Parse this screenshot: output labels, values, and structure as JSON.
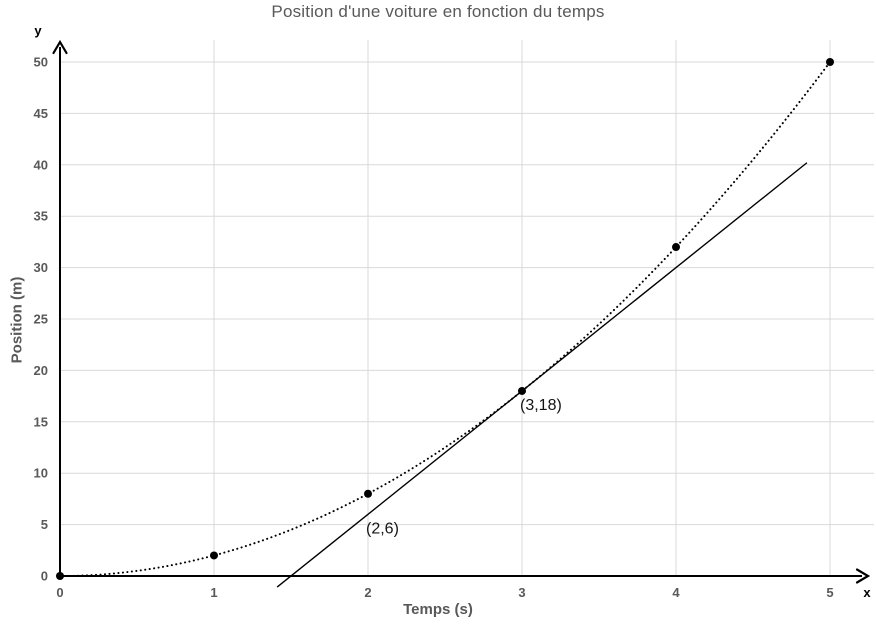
{
  "chart_data": {
    "type": "line",
    "title": "Position d'une voiture en fonction du temps",
    "xlabel": "Temps (s)",
    "ylabel": "Position (m)",
    "x_axis_letter": "x",
    "y_axis_letter": "y",
    "xlim": [
      0,
      5
    ],
    "ylim": [
      0,
      50
    ],
    "x_ticks": [
      0,
      1,
      2,
      3,
      4,
      5
    ],
    "y_ticks": [
      0,
      5,
      10,
      15,
      20,
      25,
      30,
      35,
      40,
      45,
      50
    ],
    "grid": true,
    "legend": "none",
    "series": [
      {
        "name": "position-curve",
        "style": "dotted",
        "marker": "filled-circle",
        "x": [
          0,
          1,
          2,
          3,
          4,
          5
        ],
        "y": [
          0,
          2,
          8,
          18,
          32,
          50
        ],
        "bezier_control": [
          2.5,
          0
        ]
      },
      {
        "name": "tangent-line",
        "style": "solid",
        "marker": "none",
        "points": [
          [
            2,
            6
          ],
          [
            3,
            18
          ]
        ],
        "slope": 12,
        "intercept": -18,
        "x_draw_range": [
          1.41,
          4.85
        ]
      }
    ],
    "annotations": [
      {
        "text": "(2,6)",
        "x": 2,
        "y": 6
      },
      {
        "text": "(3,18)",
        "x": 3,
        "y": 18
      }
    ],
    "colors": {
      "grid": "#d9d9d9",
      "axis": "#000000",
      "curve": "#000000",
      "tick_text": "#595959",
      "title_text": "#595959",
      "annotation_text": "#141414"
    }
  }
}
